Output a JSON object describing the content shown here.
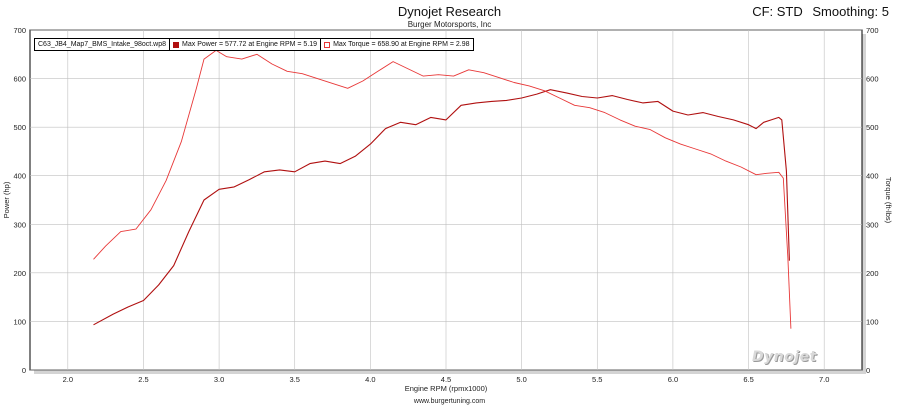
{
  "header": {
    "title": "Dynojet Research",
    "subtitle": "Burger Motorsports, Inc",
    "cf_label": "CF: STD",
    "smoothing_label": "Smoothing: 5"
  },
  "legend": {
    "file": "C63_JB4_Map7_BMS_Intake_98oct.wp8",
    "power": "Max Power = 577.72 at Engine RPM = 5.19",
    "torque": "Max Torque = 658.90 at Engine RPM = 2.98"
  },
  "footer": {
    "url": "www.burgertuning.com"
  },
  "logo": {
    "text": "Dynojet"
  },
  "colors": {
    "power": "#b01010",
    "torque": "#e83838",
    "grid": "#c0c0c0",
    "frame": "#000000"
  },
  "chart_data": {
    "type": "line",
    "xlabel": "Engine RPM (rpmx1000)",
    "ylabel": "Power (hp)",
    "y2label": "Torque (ft-lbs)",
    "xlim": [
      1.75,
      7.25
    ],
    "ylim": [
      0,
      700
    ],
    "y2lim": [
      0,
      700
    ],
    "xticks": [
      2.0,
      2.5,
      3.0,
      3.5,
      4.0,
      4.5,
      5.0,
      5.5,
      6.0,
      6.5,
      7.0
    ],
    "yticks": [
      0,
      100,
      200,
      300,
      400,
      500,
      600,
      700
    ],
    "grid": true,
    "series": [
      {
        "name": "Max Power = 577.72 at Engine RPM = 5.19",
        "axis": "left",
        "x": [
          2.17,
          2.3,
          2.4,
          2.5,
          2.6,
          2.7,
          2.8,
          2.9,
          3.0,
          3.1,
          3.2,
          3.3,
          3.4,
          3.5,
          3.6,
          3.7,
          3.8,
          3.9,
          4.0,
          4.1,
          4.2,
          4.3,
          4.4,
          4.5,
          4.6,
          4.7,
          4.8,
          4.9,
          5.0,
          5.1,
          5.19,
          5.3,
          5.4,
          5.5,
          5.6,
          5.7,
          5.8,
          5.9,
          6.0,
          6.1,
          6.2,
          6.3,
          6.4,
          6.5,
          6.55,
          6.6,
          6.65,
          6.7,
          6.72,
          6.75,
          6.77
        ],
        "y": [
          93,
          115,
          130,
          143,
          175,
          215,
          285,
          350,
          372,
          377,
          392,
          408,
          412,
          408,
          425,
          430,
          425,
          440,
          465,
          497,
          510,
          505,
          520,
          515,
          545,
          550,
          553,
          555,
          560,
          568,
          577,
          570,
          563,
          560,
          565,
          557,
          550,
          553,
          533,
          525,
          530,
          522,
          515,
          505,
          497,
          510,
          515,
          520,
          515,
          410,
          225
        ]
      },
      {
        "name": "Max Torque = 658.90 at Engine RPM = 2.98",
        "axis": "right",
        "x": [
          2.17,
          2.25,
          2.35,
          2.45,
          2.55,
          2.65,
          2.75,
          2.85,
          2.9,
          2.98,
          3.05,
          3.15,
          3.25,
          3.35,
          3.45,
          3.55,
          3.65,
          3.75,
          3.85,
          3.95,
          4.05,
          4.15,
          4.25,
          4.35,
          4.45,
          4.55,
          4.65,
          4.75,
          4.85,
          4.95,
          5.05,
          5.15,
          5.25,
          5.35,
          5.45,
          5.55,
          5.65,
          5.75,
          5.85,
          5.95,
          6.05,
          6.15,
          6.25,
          6.35,
          6.45,
          6.55,
          6.62,
          6.7,
          6.73,
          6.76,
          6.78
        ],
        "y": [
          228,
          255,
          285,
          290,
          330,
          390,
          470,
          580,
          640,
          658,
          645,
          640,
          650,
          630,
          615,
          610,
          600,
          590,
          580,
          595,
          615,
          635,
          620,
          605,
          608,
          605,
          618,
          612,
          602,
          592,
          585,
          575,
          560,
          545,
          540,
          530,
          515,
          502,
          495,
          478,
          465,
          455,
          445,
          430,
          418,
          402,
          405,
          407,
          395,
          230,
          85
        ]
      }
    ]
  }
}
